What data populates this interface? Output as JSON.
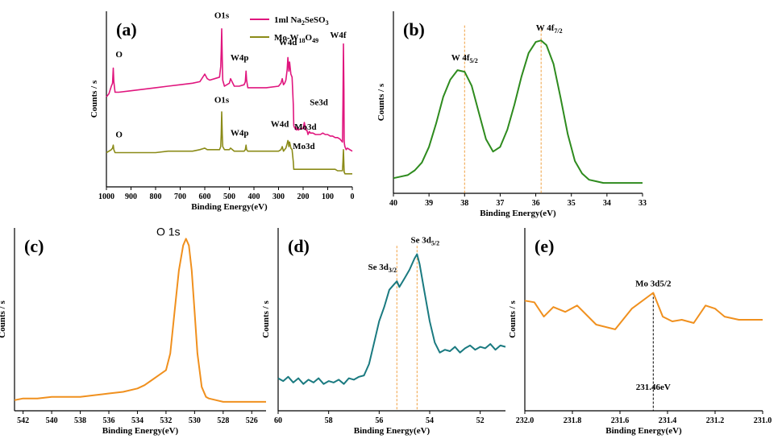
{
  "colors": {
    "magenta": "#e0167e",
    "olive": "#8b8b18",
    "green": "#2e8b1e",
    "orange": "#f0901e",
    "teal": "#1a7a80",
    "guide_orange": "#f0a040",
    "black": "#000000"
  },
  "chart_data": [
    {
      "id": "a",
      "type": "line",
      "panel_label": "(a)",
      "xlabel": "Binding Energy(eV)",
      "ylabel": "Counts / s",
      "xlim": [
        1000,
        0
      ],
      "ylim": [
        0,
        1
      ],
      "xticks": [
        "1000",
        "900",
        "800",
        "700",
        "600",
        "500",
        "400",
        "300",
        "200",
        "100",
        "0"
      ],
      "legend": [
        {
          "name_parts": [
            "1ml Na",
            "2",
            "SeSO",
            "3"
          ],
          "color_key": "magenta"
        },
        {
          "name_parts": [
            "Mo-W",
            "18",
            "O",
            "49"
          ],
          "color_key": "olive"
        }
      ],
      "series": [
        {
          "name": "1ml Na2SeSO3",
          "color_key": "magenta",
          "x": [
            1000,
            990,
            980,
            975,
            972,
            970,
            965,
            950,
            900,
            850,
            800,
            750,
            700,
            650,
            620,
            600,
            590,
            580,
            560,
            540,
            535,
            533,
            531,
            529,
            527,
            520,
            510,
            500,
            495,
            480,
            460,
            440,
            435,
            432,
            430,
            425,
            415,
            400,
            380,
            350,
            300,
            290,
            285,
            280,
            275,
            270,
            265,
            262,
            260,
            258,
            255,
            250,
            245,
            240,
            238,
            236,
            232,
            230,
            228,
            225,
            220,
            210,
            200,
            195,
            190,
            185,
            180,
            175,
            170,
            160,
            150,
            140,
            130,
            120,
            110,
            100,
            90,
            80,
            70,
            60,
            50,
            45,
            40,
            38,
            36,
            34,
            33,
            32,
            30,
            25,
            20,
            10,
            0
          ],
          "y": [
            0.55,
            0.57,
            0.62,
            0.64,
            0.74,
            0.65,
            0.58,
            0.58,
            0.59,
            0.6,
            0.61,
            0.62,
            0.63,
            0.64,
            0.65,
            0.7,
            0.67,
            0.66,
            0.67,
            0.68,
            0.75,
            0.85,
            1.0,
            0.8,
            0.66,
            0.62,
            0.63,
            0.64,
            0.67,
            0.62,
            0.62,
            0.63,
            0.65,
            0.72,
            0.66,
            0.61,
            0.61,
            0.61,
            0.61,
            0.61,
            0.62,
            0.64,
            0.67,
            0.63,
            0.64,
            0.66,
            0.73,
            0.81,
            0.77,
            0.72,
            0.78,
            0.7,
            0.68,
            0.5,
            0.36,
            0.35,
            0.34,
            0.35,
            0.33,
            0.34,
            0.33,
            0.34,
            0.34,
            0.38,
            0.33,
            0.33,
            0.3,
            0.32,
            0.31,
            0.31,
            0.3,
            0.3,
            0.3,
            0.31,
            0.3,
            0.3,
            0.29,
            0.29,
            0.28,
            0.28,
            0.27,
            0.26,
            0.25,
            0.5,
            0.9,
            0.6,
            0.26,
            0.24,
            0.22,
            0.2,
            0.21,
            0.2,
            0.19
          ]
        },
        {
          "name": "Mo-W18O49",
          "color_key": "olive",
          "x": [
            1000,
            990,
            980,
            975,
            972,
            970,
            965,
            950,
            900,
            850,
            800,
            750,
            700,
            650,
            620,
            600,
            590,
            580,
            560,
            540,
            535,
            533,
            531,
            529,
            527,
            520,
            510,
            500,
            495,
            480,
            460,
            440,
            435,
            432,
            430,
            425,
            415,
            400,
            380,
            350,
            300,
            290,
            285,
            280,
            275,
            270,
            265,
            262,
            260,
            258,
            255,
            250,
            245,
            240,
            238,
            236,
            232,
            230,
            228,
            225,
            220,
            210,
            200,
            195,
            190,
            185,
            180,
            175,
            170,
            160,
            150,
            140,
            130,
            120,
            110,
            100,
            90,
            80,
            70,
            60,
            50,
            45,
            40,
            38,
            36,
            34,
            33,
            32,
            30,
            25,
            20,
            10,
            0
          ],
          "y": [
            0.18,
            0.19,
            0.2,
            0.21,
            0.23,
            0.2,
            0.18,
            0.18,
            0.18,
            0.18,
            0.18,
            0.19,
            0.19,
            0.19,
            0.2,
            0.21,
            0.2,
            0.2,
            0.2,
            0.2,
            0.22,
            0.3,
            0.45,
            0.3,
            0.22,
            0.2,
            0.2,
            0.2,
            0.21,
            0.19,
            0.19,
            0.19,
            0.2,
            0.23,
            0.2,
            0.19,
            0.19,
            0.19,
            0.19,
            0.19,
            0.19,
            0.2,
            0.22,
            0.19,
            0.2,
            0.21,
            0.24,
            0.26,
            0.25,
            0.22,
            0.25,
            0.21,
            0.2,
            0.12,
            0.07,
            0.07,
            0.07,
            0.07,
            0.07,
            0.07,
            0.07,
            0.07,
            0.07,
            0.07,
            0.07,
            0.07,
            0.07,
            0.07,
            0.07,
            0.07,
            0.07,
            0.07,
            0.07,
            0.07,
            0.07,
            0.07,
            0.07,
            0.07,
            0.07,
            0.06,
            0.06,
            0.06,
            0.06,
            0.12,
            0.2,
            0.1,
            0.05,
            0.05,
            0.04,
            0.04,
            0.04,
            0.04,
            0.04
          ]
        }
      ],
      "annotations": [
        {
          "text": "O",
          "x": 975,
          "y": 0.78
        },
        {
          "text": "O1s",
          "x": 531,
          "y": 1.05
        },
        {
          "text": "W4p",
          "x": 432,
          "y": 0.76
        },
        {
          "text": "W4d",
          "x": 262,
          "y": 0.86
        },
        {
          "text": "W4f",
          "x": 38,
          "y": 0.92
        },
        {
          "text": "Mo3d",
          "x": 230,
          "y": 0.44
        },
        {
          "text": "Se3d",
          "x": 90,
          "y": 0.43
        },
        {
          "text": "O",
          "x": 975,
          "y": 0.25
        },
        {
          "text": "O1s",
          "x": 531,
          "y": 0.49
        },
        {
          "text": "W4p",
          "x": 432,
          "y": 0.26
        },
        {
          "text": "W4d",
          "x": 262,
          "y": 0.32
        },
        {
          "text": "Mo3d",
          "x": 230,
          "y": 0.13
        }
      ]
    },
    {
      "id": "b",
      "type": "line",
      "panel_label": "(b)",
      "xlabel": "Binding Energy(eV)",
      "ylabel": "Counts / s",
      "xlim": [
        40,
        33
      ],
      "ylim": [
        0,
        1
      ],
      "xticks": [
        "40",
        "39",
        "38",
        "37",
        "36",
        "35",
        "34",
        "33"
      ],
      "series": [
        {
          "name": "W 4f",
          "color_key": "green",
          "x": [
            40,
            39.8,
            39.6,
            39.4,
            39.2,
            39.0,
            38.8,
            38.6,
            38.4,
            38.2,
            38.0,
            37.8,
            37.6,
            37.4,
            37.2,
            37.0,
            36.8,
            36.6,
            36.4,
            36.2,
            36.0,
            35.85,
            35.7,
            35.5,
            35.3,
            35.1,
            34.9,
            34.7,
            34.5,
            34.3,
            34.1,
            33.8,
            33.5,
            33.0
          ],
          "y": [
            0.05,
            0.06,
            0.07,
            0.1,
            0.15,
            0.25,
            0.4,
            0.57,
            0.68,
            0.74,
            0.73,
            0.64,
            0.47,
            0.3,
            0.22,
            0.25,
            0.36,
            0.52,
            0.7,
            0.85,
            0.92,
            0.93,
            0.9,
            0.78,
            0.56,
            0.33,
            0.16,
            0.08,
            0.04,
            0.03,
            0.02,
            0.02,
            0.02,
            0.02
          ]
        }
      ],
      "annotations": [
        {
          "text_main": "W 4f",
          "text_sub": "5/2",
          "x": 38.0,
          "y": 0.74
        },
        {
          "text_main": "W 4f",
          "text_sub": "7/2",
          "x": 35.85,
          "y": 0.93
        }
      ],
      "guides": [
        38.0,
        35.85
      ]
    },
    {
      "id": "c",
      "type": "line",
      "panel_label": "(c)",
      "xlabel": "Binding Energy(eV)",
      "ylabel": "Counts / s",
      "xlim": [
        542.6,
        525
      ],
      "ylim": [
        0,
        1
      ],
      "xticks": [
        "542",
        "540",
        "538",
        "536",
        "534",
        "532",
        "530",
        "528",
        "526"
      ],
      "xtick_values": [
        542,
        540,
        538,
        536,
        534,
        532,
        530,
        528,
        526
      ],
      "series": [
        {
          "name": "O 1s",
          "color_key": "orange",
          "x": [
            542.6,
            542,
            541,
            540,
            539,
            538,
            537,
            536,
            535,
            534,
            533.5,
            533,
            532.5,
            532,
            531.7,
            531.4,
            531.1,
            530.8,
            530.6,
            530.4,
            530.2,
            530,
            529.8,
            529.5,
            529.2,
            529,
            528.5,
            528,
            527,
            526,
            525
          ],
          "y": [
            0.02,
            0.03,
            0.03,
            0.04,
            0.04,
            0.04,
            0.05,
            0.06,
            0.07,
            0.09,
            0.11,
            0.14,
            0.17,
            0.2,
            0.3,
            0.55,
            0.8,
            0.95,
            0.99,
            0.95,
            0.8,
            0.55,
            0.3,
            0.1,
            0.04,
            0.03,
            0.02,
            0.01,
            0.01,
            0.01,
            0.01
          ]
        }
      ],
      "annotations": [
        {
          "text": "O 1s",
          "x": 530.6,
          "y": 0.99
        }
      ]
    },
    {
      "id": "d",
      "type": "line",
      "panel_label": "(d)",
      "xlabel": "Binding Energy(eV)",
      "ylabel": "Counts / s",
      "xlim": [
        60,
        51
      ],
      "ylim": [
        0,
        1
      ],
      "xticks": [
        "60",
        "58",
        "56",
        "54",
        "52"
      ],
      "xtick_values": [
        60,
        58,
        56,
        54,
        52
      ],
      "series": [
        {
          "name": "Se 3d",
          "color_key": "teal",
          "x": [
            60,
            59.8,
            59.6,
            59.4,
            59.2,
            59.0,
            58.8,
            58.6,
            58.4,
            58.2,
            58.0,
            57.8,
            57.6,
            57.4,
            57.2,
            57.0,
            56.8,
            56.6,
            56.4,
            56.2,
            56.0,
            55.8,
            55.6,
            55.4,
            55.3,
            55.2,
            55.0,
            54.8,
            54.6,
            54.5,
            54.4,
            54.2,
            54.0,
            53.8,
            53.6,
            53.4,
            53.2,
            53.0,
            52.8,
            52.6,
            52.4,
            52.2,
            52.0,
            51.8,
            51.6,
            51.4,
            51.2,
            51.0
          ],
          "y": [
            0.1,
            0.08,
            0.11,
            0.07,
            0.1,
            0.06,
            0.09,
            0.07,
            0.1,
            0.06,
            0.08,
            0.07,
            0.09,
            0.06,
            0.1,
            0.09,
            0.11,
            0.12,
            0.2,
            0.35,
            0.5,
            0.6,
            0.72,
            0.76,
            0.78,
            0.74,
            0.8,
            0.86,
            0.94,
            0.97,
            0.9,
            0.7,
            0.5,
            0.35,
            0.28,
            0.3,
            0.29,
            0.32,
            0.28,
            0.31,
            0.33,
            0.3,
            0.32,
            0.31,
            0.34,
            0.3,
            0.33,
            0.32
          ]
        }
      ],
      "annotations": [
        {
          "text_main": "Se 3d",
          "text_sub": "3/2",
          "x": 55.3,
          "y": 0.78
        },
        {
          "text_main": "Se 3d",
          "text_sub": "5/2",
          "x": 54.5,
          "y": 0.97
        }
      ],
      "guides": [
        55.3,
        54.5
      ]
    },
    {
      "id": "e",
      "type": "line",
      "panel_label": "(e)",
      "xlabel": "Binding Energy(eV)",
      "ylabel": "Counts / s",
      "xlim": [
        232.0,
        231.0
      ],
      "ylim": [
        0,
        1
      ],
      "xticks": [
        "232.0",
        "231.8",
        "231.6",
        "231.4",
        "231.2",
        "231.0"
      ],
      "xtick_values": [
        232.0,
        231.8,
        231.6,
        231.4,
        231.2,
        231.0
      ],
      "series": [
        {
          "name": "Mo 3d5/2",
          "color_key": "orange",
          "x": [
            232.0,
            231.96,
            231.92,
            231.88,
            231.83,
            231.78,
            231.7,
            231.62,
            231.55,
            231.46,
            231.42,
            231.38,
            231.34,
            231.29,
            231.24,
            231.2,
            231.16,
            231.1,
            231.05,
            231.0
          ],
          "y": [
            0.6,
            0.59,
            0.5,
            0.56,
            0.53,
            0.57,
            0.45,
            0.42,
            0.55,
            0.65,
            0.5,
            0.47,
            0.48,
            0.46,
            0.57,
            0.55,
            0.5,
            0.48,
            0.48,
            0.48
          ]
        }
      ],
      "annotations": [
        {
          "text": "Mo 3d5/2",
          "x": 231.46,
          "y": 0.65
        },
        {
          "text": "231.46eV",
          "x": 231.46,
          "y": 0.05
        }
      ],
      "guides": [
        231.46
      ]
    }
  ]
}
